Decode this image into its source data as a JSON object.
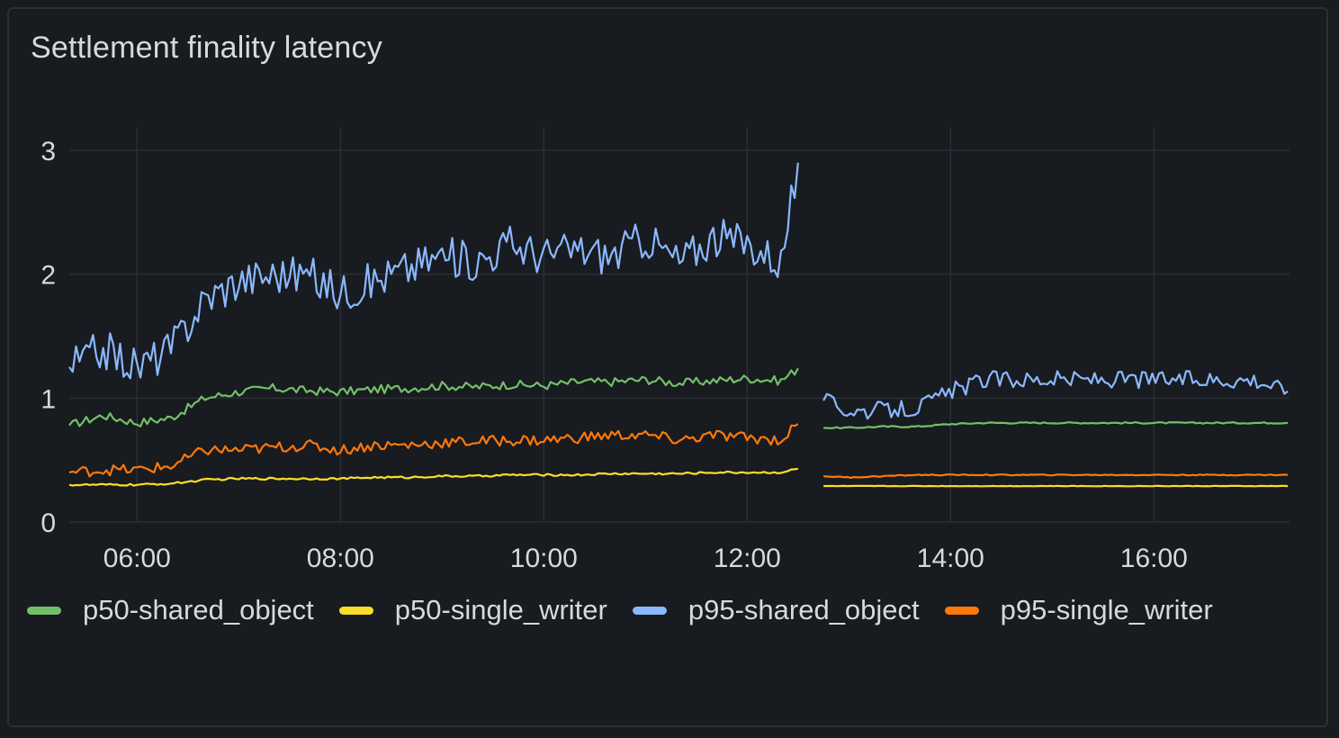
{
  "panel": {
    "title": "Settlement finality latency"
  },
  "chart_data": {
    "type": "line",
    "title": "Settlement finality latency",
    "x_range": [
      "05:20",
      "17:20"
    ],
    "ylim": [
      0,
      3
    ],
    "x_ticks": [
      "06:00",
      "08:00",
      "10:00",
      "12:00",
      "14:00",
      "16:00"
    ],
    "y_ticks": [
      "0",
      "1",
      "2",
      "3"
    ],
    "grid": true,
    "legend_position": "bottom-left",
    "gap": [
      "12:30",
      "12:45"
    ],
    "series": [
      {
        "name": "p50-shared_object",
        "color": "#73bf69",
        "x": [
          "05:20",
          "05:40",
          "06:00",
          "06:20",
          "06:40",
          "07:00",
          "07:20",
          "07:40",
          "08:00",
          "08:20",
          "08:40",
          "09:00",
          "09:20",
          "09:40",
          "10:00",
          "10:20",
          "10:40",
          "11:00",
          "11:20",
          "11:40",
          "12:00",
          "12:20",
          "12:30",
          "12:45",
          "13:00",
          "13:20",
          "13:40",
          "14:00",
          "14:20",
          "14:40",
          "15:00",
          "15:20",
          "15:40",
          "16:00",
          "16:20",
          "16:40",
          "17:00",
          "17:20"
        ],
        "values": [
          0.78,
          0.86,
          0.8,
          0.84,
          1.0,
          1.05,
          1.08,
          1.06,
          1.05,
          1.07,
          1.08,
          1.1,
          1.09,
          1.11,
          1.1,
          1.13,
          1.13,
          1.15,
          1.12,
          1.14,
          1.16,
          1.14,
          1.24,
          0.76,
          0.76,
          0.77,
          0.77,
          0.79,
          0.8,
          0.8,
          0.8,
          0.8,
          0.8,
          0.8,
          0.8,
          0.8,
          0.8,
          0.8
        ]
      },
      {
        "name": "p50-single_writer",
        "color": "#fade2a",
        "x": [
          "05:20",
          "05:40",
          "06:00",
          "06:20",
          "06:40",
          "07:00",
          "07:20",
          "07:40",
          "08:00",
          "08:20",
          "08:40",
          "09:00",
          "09:20",
          "09:40",
          "10:00",
          "10:20",
          "10:40",
          "11:00",
          "11:20",
          "11:40",
          "12:00",
          "12:20",
          "12:30",
          "12:45",
          "13:00",
          "13:20",
          "13:40",
          "14:00",
          "14:20",
          "14:40",
          "15:00",
          "15:20",
          "15:40",
          "16:00",
          "16:20",
          "16:40",
          "17:00",
          "17:20"
        ],
        "values": [
          0.3,
          0.3,
          0.3,
          0.31,
          0.34,
          0.35,
          0.35,
          0.35,
          0.35,
          0.36,
          0.36,
          0.37,
          0.37,
          0.38,
          0.38,
          0.38,
          0.39,
          0.39,
          0.39,
          0.4,
          0.4,
          0.4,
          0.43,
          0.29,
          0.29,
          0.29,
          0.29,
          0.29,
          0.29,
          0.29,
          0.29,
          0.29,
          0.29,
          0.29,
          0.29,
          0.29,
          0.29,
          0.29
        ]
      },
      {
        "name": "p95-shared_object",
        "color": "#8ab8ff",
        "x": [
          "05:20",
          "05:40",
          "06:00",
          "06:20",
          "06:40",
          "07:00",
          "07:20",
          "07:40",
          "08:00",
          "08:20",
          "08:40",
          "09:00",
          "09:20",
          "09:40",
          "10:00",
          "10:20",
          "10:40",
          "11:00",
          "11:20",
          "11:40",
          "12:00",
          "12:20",
          "12:30",
          "12:45",
          "13:00",
          "13:20",
          "13:40",
          "14:00",
          "14:20",
          "14:40",
          "15:00",
          "15:20",
          "15:40",
          "16:00",
          "16:20",
          "16:40",
          "17:00",
          "17:20"
        ],
        "values": [
          1.25,
          1.4,
          1.25,
          1.4,
          1.8,
          1.95,
          2.0,
          2.0,
          1.85,
          1.95,
          2.05,
          2.15,
          2.1,
          2.25,
          2.15,
          2.2,
          2.15,
          2.3,
          2.1,
          2.3,
          2.25,
          2.1,
          2.9,
          0.98,
          0.9,
          0.9,
          0.92,
          1.05,
          1.15,
          1.15,
          1.15,
          1.15,
          1.15,
          1.15,
          1.15,
          1.15,
          1.15,
          1.05
        ]
      },
      {
        "name": "p95-single_writer",
        "color": "#ff780a",
        "x": [
          "05:20",
          "05:40",
          "06:00",
          "06:20",
          "06:40",
          "07:00",
          "07:20",
          "07:40",
          "08:00",
          "08:20",
          "08:40",
          "09:00",
          "09:20",
          "09:40",
          "10:00",
          "10:20",
          "10:40",
          "11:00",
          "11:20",
          "11:40",
          "12:00",
          "12:20",
          "12:30",
          "12:45",
          "13:00",
          "13:20",
          "13:40",
          "14:00",
          "14:20",
          "14:40",
          "15:00",
          "15:20",
          "15:40",
          "16:00",
          "16:20",
          "16:40",
          "17:00",
          "17:20"
        ],
        "values": [
          0.4,
          0.42,
          0.42,
          0.45,
          0.58,
          0.58,
          0.6,
          0.62,
          0.58,
          0.62,
          0.62,
          0.64,
          0.65,
          0.66,
          0.66,
          0.68,
          0.7,
          0.7,
          0.66,
          0.7,
          0.68,
          0.66,
          0.79,
          0.37,
          0.36,
          0.37,
          0.38,
          0.38,
          0.38,
          0.38,
          0.38,
          0.38,
          0.38,
          0.38,
          0.38,
          0.38,
          0.38,
          0.38
        ]
      }
    ]
  }
}
